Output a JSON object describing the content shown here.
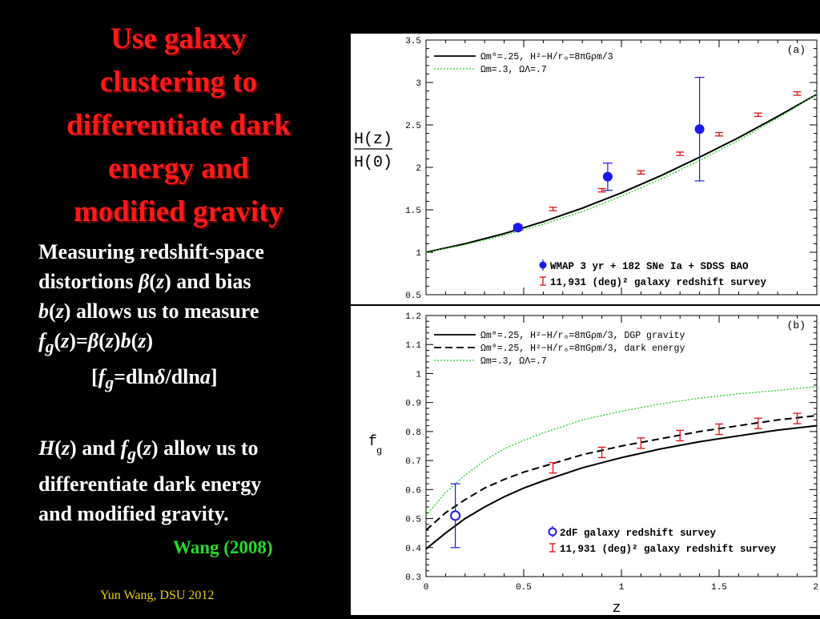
{
  "slide": {
    "title_lines": [
      "Use galaxy",
      "clustering to",
      "differentiate dark",
      "energy and",
      "modified gravity"
    ],
    "para1": {
      "line1": "Measuring redshift-space",
      "line2_a": "distortions ",
      "beta": "β",
      "line2_b": "(",
      "z": "z",
      "line2_c": ") and bias",
      "line3_b": "b",
      "line3_a": "(",
      "line3_z": "z",
      "line3_c": ") allows us to measure",
      "f": "f",
      "g": "g",
      "eq_open": "(",
      "eq_z": "z",
      "eq_mid": ")=",
      "eq_beta": "β",
      "eq_p2": "(",
      "eq_z2": "z",
      "eq_p3": ")",
      "eq_b": "b",
      "eq_p4": "(",
      "eq_z3": "z",
      "eq_p5": ")",
      "def_open": "[",
      "def_f": "f",
      "def_g": "g",
      "def_mid": "=dln",
      "def_delta": "δ",
      "def_slash": "/dln",
      "def_a": "a",
      "def_close": "]"
    },
    "para2": {
      "H": "H",
      "p1": "(",
      "z1": "z",
      "p2": ") and ",
      "f": "f",
      "g": "g",
      "p3": "(",
      "z2": "z",
      "p4": ") allow us to",
      "line2": "differentiate dark energy",
      "line3": "and modified gravity."
    },
    "citation": "Wang (2008)",
    "footer": "Yun Wang, DSU 2012"
  },
  "chart_data": [
    {
      "type": "line",
      "panel_label": "(a)",
      "ylabel_top": "H(z)",
      "ylabel_bottom": "H(0)",
      "xlim": [
        0,
        2
      ],
      "ylim": [
        0.5,
        3.5
      ],
      "xticks": [
        0,
        0.5,
        1,
        1.5,
        2
      ],
      "yticks": [
        0.5,
        1,
        1.5,
        2,
        2.5,
        3,
        3.5
      ],
      "ytick_labels": [
        "0.5",
        "1",
        "1.5",
        "2",
        "2.5",
        "3",
        "3.5"
      ],
      "legend_top": [
        {
          "style": "solid",
          "color": "#000000",
          "label": "Ωm⁰=.25, H²−H/r₀=8πGρm/3"
        },
        {
          "style": "dotted",
          "color": "#22cc22",
          "label": "Ωm=.3, ΩΛ=.7"
        }
      ],
      "legend_bottom": [
        {
          "marker": "filled-circle",
          "color": "#1a1aee",
          "label": "WMAP 3 yr + 182 SNe Ia + SDSS BAO"
        },
        {
          "marker": "errorbar",
          "color": "#e01010",
          "label": "11,931 (deg)² galaxy redshift survey"
        }
      ],
      "series": [
        {
          "name": "Ωm⁰=.25, H²−H/r₀=8πGρm/3",
          "style": "solid",
          "color": "#000000",
          "x": [
            0,
            0.2,
            0.4,
            0.6,
            0.8,
            1.0,
            1.2,
            1.4,
            1.6,
            1.8,
            2.0
          ],
          "y": [
            1.0,
            1.1,
            1.22,
            1.36,
            1.52,
            1.7,
            1.9,
            2.12,
            2.35,
            2.6,
            2.86
          ]
        },
        {
          "name": "Ωm=.3, ΩΛ=.7",
          "style": "dotted",
          "color": "#22cc22",
          "x": [
            0,
            0.2,
            0.4,
            0.6,
            0.8,
            1.0,
            1.2,
            1.4,
            1.6,
            1.8,
            2.0
          ],
          "y": [
            1.0,
            1.09,
            1.2,
            1.33,
            1.48,
            1.66,
            1.86,
            2.08,
            2.32,
            2.58,
            2.86
          ]
        }
      ],
      "observed_points": [
        {
          "x": 0.47,
          "y": 1.29,
          "yerr": 0.03
        },
        {
          "x": 0.93,
          "y": 1.89,
          "yerr": 0.16
        },
        {
          "x": 1.4,
          "y": 2.45,
          "yerr": 0.61
        }
      ],
      "forecast_points": [
        {
          "x": 0.65,
          "y": 1.51,
          "yerr": 0.02
        },
        {
          "x": 0.9,
          "y": 1.73,
          "yerr": 0.02
        },
        {
          "x": 1.1,
          "y": 1.94,
          "yerr": 0.02
        },
        {
          "x": 1.3,
          "y": 2.16,
          "yerr": 0.02
        },
        {
          "x": 1.5,
          "y": 2.39,
          "yerr": 0.02
        },
        {
          "x": 1.7,
          "y": 2.62,
          "yerr": 0.02
        },
        {
          "x": 1.9,
          "y": 2.87,
          "yerr": 0.02
        }
      ]
    },
    {
      "type": "line",
      "panel_label": "(b)",
      "ylabel_main": "f",
      "ylabel_sub": "g",
      "xlabel": "z",
      "xlim": [
        0,
        2
      ],
      "ylim": [
        0.3,
        1.2
      ],
      "xticks": [
        0,
        0.5,
        1,
        1.5,
        2
      ],
      "xtick_labels": [
        "0",
        "0.5",
        "1",
        "1.5",
        "2"
      ],
      "yticks": [
        0.3,
        0.4,
        0.5,
        0.6,
        0.7,
        0.8,
        0.9,
        1.0,
        1.1,
        1.2
      ],
      "ytick_labels": [
        "0.3",
        "0.4",
        "0.5",
        "0.6",
        "0.7",
        "0.8",
        "0.9",
        "1",
        "1.1",
        "1.2"
      ],
      "legend_top": [
        {
          "style": "solid",
          "color": "#000000",
          "label": "Ωm⁰=.25, H²−H/r₀=8πGρm/3, DGP gravity"
        },
        {
          "style": "dashed",
          "color": "#000000",
          "label": "Ωm⁰=.25, H²−H/r₀=8πGρm/3, dark energy"
        },
        {
          "style": "dotted",
          "color": "#22cc22",
          "label": "Ωm=.3, ΩΛ=.7"
        }
      ],
      "legend_bottom": [
        {
          "marker": "open-circle",
          "color": "#1a1aee",
          "label": "2dF galaxy redshift survey"
        },
        {
          "marker": "errorbar",
          "color": "#e01010",
          "label": "11,931 (deg)² galaxy redshift survey"
        }
      ],
      "series": [
        {
          "name": "DGP gravity",
          "style": "solid",
          "color": "#000000",
          "x": [
            0,
            0.1,
            0.2,
            0.3,
            0.4,
            0.5,
            0.6,
            0.8,
            1.0,
            1.2,
            1.4,
            1.6,
            1.8,
            2.0
          ],
          "y": [
            0.395,
            0.45,
            0.5,
            0.54,
            0.575,
            0.605,
            0.63,
            0.675,
            0.71,
            0.74,
            0.765,
            0.785,
            0.805,
            0.82
          ]
        },
        {
          "name": "dark energy",
          "style": "dashed",
          "color": "#000000",
          "x": [
            0,
            0.1,
            0.2,
            0.3,
            0.4,
            0.5,
            0.6,
            0.8,
            1.0,
            1.2,
            1.4,
            1.6,
            1.8,
            2.0
          ],
          "y": [
            0.46,
            0.52,
            0.565,
            0.605,
            0.635,
            0.66,
            0.68,
            0.72,
            0.75,
            0.775,
            0.8,
            0.82,
            0.84,
            0.855
          ]
        },
        {
          "name": "Ωm=.3, ΩΛ=.7",
          "style": "dotted",
          "color": "#22cc22",
          "x": [
            0,
            0.1,
            0.2,
            0.3,
            0.4,
            0.5,
            0.6,
            0.8,
            1.0,
            1.2,
            1.4,
            1.6,
            1.8,
            2.0
          ],
          "y": [
            0.51,
            0.59,
            0.65,
            0.7,
            0.74,
            0.77,
            0.795,
            0.84,
            0.87,
            0.895,
            0.915,
            0.93,
            0.942,
            0.955
          ]
        }
      ],
      "observed_points": [
        {
          "x": 0.15,
          "y": 0.51,
          "yerr": 0.11
        }
      ],
      "forecast_points": [
        {
          "x": 0.65,
          "y": 0.675,
          "yerr": 0.018
        },
        {
          "x": 0.9,
          "y": 0.728,
          "yerr": 0.018
        },
        {
          "x": 1.1,
          "y": 0.76,
          "yerr": 0.018
        },
        {
          "x": 1.3,
          "y": 0.786,
          "yerr": 0.018
        },
        {
          "x": 1.5,
          "y": 0.808,
          "yerr": 0.018
        },
        {
          "x": 1.7,
          "y": 0.828,
          "yerr": 0.018
        },
        {
          "x": 1.9,
          "y": 0.845,
          "yerr": 0.018
        }
      ]
    }
  ]
}
